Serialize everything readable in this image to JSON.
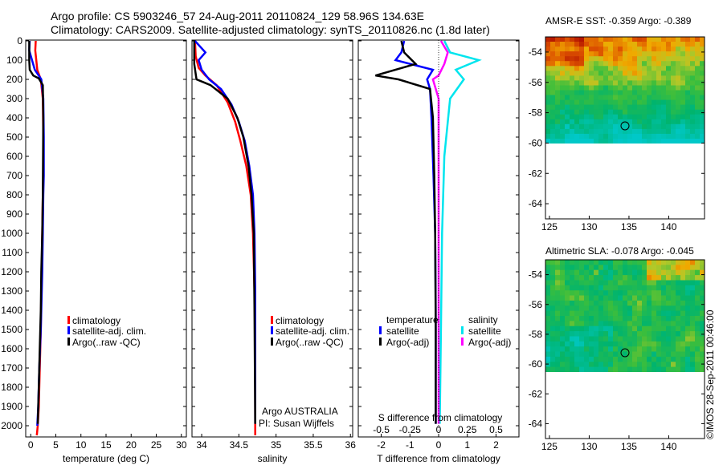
{
  "header": {
    "title_line1": "Argo profile: CS 5903246_57 24-Aug-2011 20110824_129 58.96S 134.63E",
    "title_line2": "Climatology: CARS2009. Satellite-adjusted climatology: synTS_20110826.nc (1.8d later)"
  },
  "depth_ticks": [
    "0",
    "100",
    "200",
    "300",
    "400",
    "500",
    "600",
    "700",
    "800",
    "900",
    "1000",
    "1100",
    "1200",
    "1300",
    "1400",
    "1500",
    "1600",
    "1700",
    "1800",
    "1900",
    "2000"
  ],
  "colors": {
    "climatology": "#ff0000",
    "satellite_adj": "#0000ff",
    "argo": "#000000",
    "salinity_satellite": "#00e5ee",
    "salinity_argo": "#ff00ff",
    "axis": "#000000"
  },
  "panel1": {
    "xlabel": "temperature (deg C)",
    "xticks": [
      "0",
      "5",
      "10",
      "15",
      "20",
      "25",
      "30"
    ],
    "legend": [
      "climatology",
      "satellite-adj. clim.",
      "Argo(..raw -QC)"
    ]
  },
  "panel2": {
    "xlabel": "salinity",
    "xticks": [
      "34",
      "34.5",
      "35",
      "35.5",
      "36"
    ],
    "legend": [
      "climatology",
      "satellite-adj. clim.",
      "Argo(..raw -QC)"
    ],
    "note1": "Argo AUSTRALIA",
    "note2": "PI: Susan Wijffels"
  },
  "panel3": {
    "xlabel": "T difference from climatology",
    "xticks": [
      "-2",
      "-1",
      "0",
      "1",
      "2"
    ],
    "top_label": "S difference from climatology",
    "top_ticks": [
      "-0.5",
      "-0.25",
      "0",
      "0.25",
      "0.5"
    ],
    "legend_temp_title": "temperature",
    "legend_sal_title": "salinity",
    "legend_temp": [
      "satellite",
      "Argo(-adj)"
    ],
    "legend_sal": [
      "satellite",
      "Argo(-adj)"
    ]
  },
  "map1": {
    "title": "AMSR-E SST: -0.359 Argo: -0.389",
    "yticks": [
      "-54",
      "-56",
      "-58",
      "-60",
      "-62",
      "-64"
    ],
    "xticks": [
      "125",
      "130",
      "135",
      "140"
    ]
  },
  "map2": {
    "title": "Altimetric SLA: -0.078 Argo: -0.045",
    "yticks": [
      "-54",
      "-56",
      "-58",
      "-60",
      "-62",
      "-64"
    ],
    "xticks": [
      "125",
      "130",
      "135",
      "140"
    ]
  },
  "credit": "©IMOS 28-Sep-2011 00:46:00",
  "chart_data": [
    {
      "type": "line",
      "xlabel": "temperature (deg C)",
      "ylabel": "",
      "xlim": [
        -1,
        31
      ],
      "ylim": [
        2050,
        0
      ],
      "series": [
        {
          "name": "climatology",
          "x": [
            1.0,
            0.9,
            1.3,
            2.0,
            2.4,
            2.5,
            2.5,
            2.4,
            2.3,
            2.2,
            2.1,
            2.0,
            1.8,
            1.6,
            1.4,
            1.2
          ],
          "y": [
            0,
            50,
            150,
            200,
            300,
            500,
            700,
            800,
            1000,
            1200,
            1300,
            1500,
            1700,
            1900,
            2000,
            2050
          ]
        },
        {
          "name": "satellite-adj. clim.",
          "x": [
            -0.2,
            -0.3,
            0.8,
            2.1,
            2.5,
            2.6,
            2.6,
            2.5,
            2.4,
            2.3,
            2.2,
            2.0,
            1.7,
            1.5,
            1.3
          ],
          "y": [
            0,
            50,
            150,
            200,
            300,
            500,
            700,
            800,
            1000,
            1200,
            1300,
            1500,
            1700,
            1900,
            2000
          ]
        },
        {
          "name": "Argo(..raw -QC)",
          "x": [
            -0.3,
            -0.3,
            -0.2,
            0.5,
            1.6,
            2.4,
            2.5,
            2.4,
            2.3,
            2.1,
            2.0,
            1.8,
            1.6,
            1.4
          ],
          "y": [
            0,
            100,
            150,
            180,
            195,
            230,
            400,
            800,
            1000,
            1200,
            1400,
            1600,
            1800,
            1990
          ]
        }
      ]
    },
    {
      "type": "line",
      "xlabel": "salinity",
      "ylabel": "",
      "xlim": [
        33.87,
        36.03
      ],
      "ylim": [
        2050,
        0
      ],
      "series": [
        {
          "name": "climatology",
          "x": [
            33.91,
            33.92,
            33.96,
            34.05,
            34.2,
            34.35,
            34.45,
            34.52,
            34.6,
            34.66,
            34.69,
            34.71,
            34.72,
            34.72,
            34.72
          ],
          "y": [
            0,
            80,
            140,
            180,
            230,
            320,
            420,
            520,
            650,
            800,
            1000,
            1300,
            1600,
            1900,
            2050
          ]
        },
        {
          "name": "satellite-adj. clim.",
          "x": [
            33.91,
            34.05,
            33.96,
            34.0,
            34.1,
            34.26,
            34.4,
            34.5,
            34.58,
            34.64,
            34.69,
            34.71,
            34.72,
            34.72,
            34.72
          ],
          "y": [
            0,
            60,
            100,
            150,
            200,
            250,
            330,
            420,
            520,
            650,
            800,
            1000,
            1300,
            1600,
            1990
          ]
        },
        {
          "name": "Argo(..raw -QC)",
          "x": [
            33.9,
            33.9,
            33.93,
            34.12,
            34.35,
            34.48,
            34.56,
            34.63,
            34.67,
            34.7,
            34.71,
            34.72
          ],
          "y": [
            0,
            120,
            200,
            230,
            300,
            400,
            500,
            650,
            800,
            1000,
            1400,
            1990
          ]
        }
      ]
    },
    {
      "type": "line",
      "xlabel": "T difference from climatology",
      "x2label": "S difference from climatology",
      "xlim": [
        -2.8,
        2.8
      ],
      "x2lim": [
        -0.7,
        0.7
      ],
      "ylim": [
        2050,
        0
      ],
      "series": [
        {
          "name": "temperature satellite",
          "axis": "T",
          "x": [
            -1.2,
            -1.3,
            -1.5,
            -0.2,
            -0.4,
            -0.3,
            -0.25,
            -0.18,
            -0.12,
            -0.1,
            -0.1,
            -0.1
          ],
          "y": [
            0,
            60,
            100,
            150,
            200,
            250,
            400,
            700,
            1000,
            1400,
            1800,
            1990
          ]
        },
        {
          "name": "temperature Argo(-adj)",
          "axis": "T",
          "x": [
            -1.3,
            -1.2,
            -0.8,
            -2.2,
            -1.4,
            -0.3,
            -0.2,
            -0.15,
            -0.12,
            -0.1,
            -0.1
          ],
          "y": [
            0,
            60,
            120,
            180,
            200,
            250,
            400,
            700,
            1000,
            1500,
            1990
          ]
        },
        {
          "name": "salinity satellite",
          "axis": "S",
          "x": [
            0.05,
            0.1,
            0.35,
            0.15,
            0.22,
            0.1,
            0.05,
            0.03,
            0.02,
            0.01
          ],
          "y": [
            0,
            60,
            100,
            150,
            200,
            300,
            600,
            1000,
            1500,
            1990
          ]
        },
        {
          "name": "salinity Argo(-adj)",
          "axis": "S",
          "x": [
            0.02,
            0.08,
            0.05,
            0.0,
            -0.05,
            0.0,
            0.0,
            0.0
          ],
          "y": [
            0,
            60,
            120,
            180,
            200,
            300,
            800,
            1990
          ]
        }
      ]
    },
    {
      "type": "heatmap",
      "title": "AMSR-E SST: -0.359 Argo: -0.389",
      "xlim": [
        124.5,
        144.5
      ],
      "ylim": [
        -65,
        -53
      ],
      "data_extent_lat": [
        -60,
        -53
      ],
      "argo_position": [
        134.63,
        -58.96
      ]
    },
    {
      "type": "heatmap",
      "title": "Altimetric SLA: -0.078 Argo: -0.045",
      "xlim": [
        124.5,
        144.5
      ],
      "ylim": [
        -65,
        -53
      ],
      "data_extent_lat": [
        -60,
        -53
      ],
      "argo_position": [
        134.63,
        -58.96
      ]
    }
  ]
}
